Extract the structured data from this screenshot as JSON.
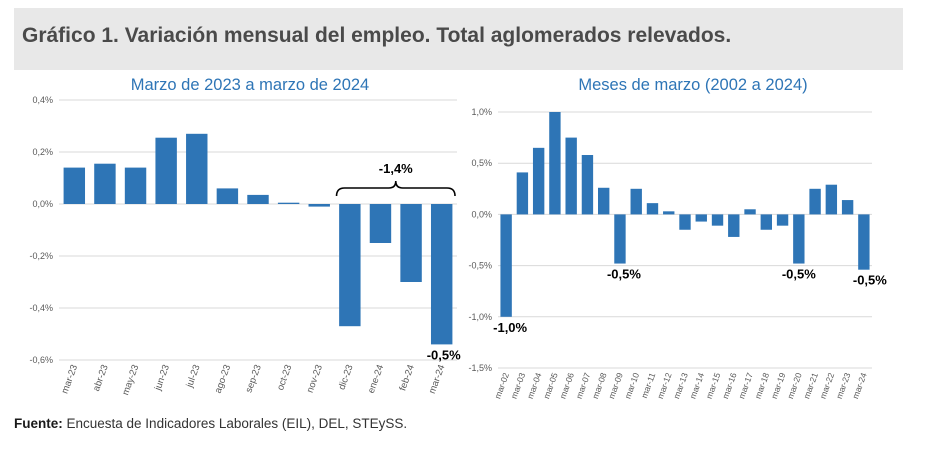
{
  "title": "Gráfico 1. Variación mensual del empleo. Total aglomerados relevados.",
  "footer": {
    "label": "Fuente:",
    "text": " Encuesta de Indicadores Laborales (EIL), DEL, STEySS."
  },
  "colors": {
    "bar": "#2e75b6",
    "title_text": "#4a4a4a",
    "subtitle": "#2e75b6",
    "grid": "#d9d9d9",
    "tick": "#595959"
  },
  "chart_data": [
    {
      "type": "bar",
      "title": "Marzo de 2023 a marzo de 2024",
      "categories": [
        "mar-23",
        "abr-23",
        "may-23",
        "jun-23",
        "jul-23",
        "ago-23",
        "sep-23",
        "oct-23",
        "nov-23",
        "dic-23",
        "ene-24",
        "feb-24",
        "mar-24"
      ],
      "values": [
        0.14,
        0.155,
        0.14,
        0.255,
        0.27,
        0.06,
        0.035,
        0.005,
        -0.01,
        -0.47,
        -0.15,
        -0.3,
        -0.54
      ],
      "ylim": [
        -0.6,
        0.4
      ],
      "yticks": [
        -0.6,
        -0.4,
        -0.2,
        0.0,
        0.2,
        0.4
      ],
      "ytick_labels": [
        "-0,6%",
        "-0,4%",
        "-0,2%",
        "0,0%",
        "0,2%",
        "0,4%"
      ],
      "grid": true,
      "annotations": [
        {
          "text": "-1,4%",
          "type": "brace",
          "from_index": 9,
          "to_index": 12
        },
        {
          "text": "-0,5%",
          "index": 12
        }
      ]
    },
    {
      "type": "bar",
      "title": "Meses de marzo (2002 a 2024)",
      "categories": [
        "mar-02",
        "mar-03",
        "mar-04",
        "mar-05",
        "mar-06",
        "mar-07",
        "mar-08",
        "mar-09",
        "mar-10",
        "mar-11",
        "mar-12",
        "mar-13",
        "mar-14",
        "mar-15",
        "mar-16",
        "mar-17",
        "mar-18",
        "mar-19",
        "mar-20",
        "mar-21",
        "mar-22",
        "mar-23",
        "mar-24"
      ],
      "values": [
        -1.0,
        0.41,
        0.65,
        1.0,
        0.75,
        0.58,
        0.26,
        -0.48,
        0.25,
        0.11,
        0.03,
        -0.15,
        -0.07,
        -0.11,
        -0.22,
        0.05,
        -0.15,
        -0.11,
        -0.48,
        0.25,
        0.29,
        0.14,
        -0.54
      ],
      "ylim": [
        -1.5,
        1.0
      ],
      "yticks": [
        -1.5,
        -1.0,
        -0.5,
        0.0,
        0.5,
        1.0
      ],
      "ytick_labels": [
        "-1,5%",
        "-1,0%",
        "-0,5%",
        "0,0%",
        "0,5%",
        "1,0%"
      ],
      "grid": true,
      "annotations": [
        {
          "text": "-1,0%",
          "index": 0
        },
        {
          "text": "-0,5%",
          "index": 7
        },
        {
          "text": "-0,5%",
          "index": 18
        },
        {
          "text": "-0,5%",
          "index": 22
        }
      ]
    }
  ]
}
